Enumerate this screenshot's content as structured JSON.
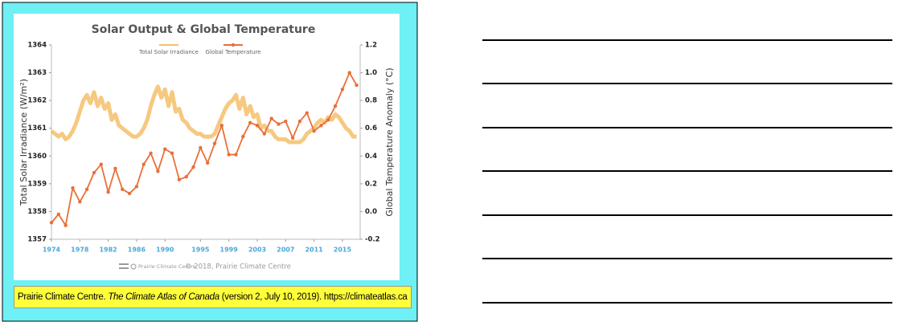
{
  "chart_data": {
    "type": "line",
    "title": "Solar Output & Global Temperature",
    "y_label": "Total Solar Irradiance (W/m²)",
    "y2_label": "Global Temperature Anomaly (°C)",
    "logo_text": "Prairie Climate Centre",
    "credit": "© 2018, Prairie Climate Centre",
    "xlim": [
      1974,
      2017.5
    ],
    "xticks": [
      1974,
      1978,
      1982,
      1986,
      1990,
      1995,
      1999,
      2003,
      2007,
      2011,
      2015
    ],
    "ylim": [
      1357,
      1364
    ],
    "yticks": [
      1357,
      1358,
      1359,
      1360,
      1361,
      1362,
      1363,
      1364
    ],
    "y2lim": [
      -0.2,
      1.2
    ],
    "y2ticks": [
      -0.2,
      {
        "value": 0,
        "label": "0.0"
      },
      0.2,
      0.4,
      0.6,
      0.8,
      {
        "value": 1,
        "label": "1.0"
      },
      1.2
    ],
    "series": [
      {
        "name": "Total Solar Irradiance",
        "color": "#f5c06a",
        "x": [
          1974,
          1974.5,
          1975,
          1975.5,
          1976,
          1976.5,
          1977,
          1977.5,
          1978,
          1978.5,
          1979,
          1979.5,
          1980,
          1980.5,
          1981,
          1981.5,
          1982,
          1982.5,
          1983,
          1983.5,
          1984,
          1984.5,
          1985,
          1985.5,
          1986,
          1986.5,
          1987,
          1987.5,
          1988,
          1988.5,
          1989,
          1989.5,
          1990,
          1990.5,
          1991,
          1991.5,
          1992,
          1992.5,
          1993,
          1993.5,
          1994,
          1994.5,
          1995,
          1995.5,
          1996,
          1996.5,
          1997,
          1997.5,
          1998,
          1998.5,
          1999,
          1999.5,
          2000,
          2000.5,
          2001,
          2001.5,
          2002,
          2002.5,
          2003,
          2003.5,
          2004,
          2004.5,
          2005,
          2005.5,
          2006,
          2006.5,
          2007,
          2007.5,
          2008,
          2008.5,
          2009,
          2009.5,
          2010,
          2010.5,
          2011,
          2011.5,
          2012,
          2012.5,
          2013,
          2013.5,
          2014,
          2014.5,
          2015,
          2015.5,
          2016,
          2016.5,
          2017
        ],
        "values": [
          1360.9,
          1360.8,
          1360.7,
          1360.8,
          1360.6,
          1360.7,
          1360.9,
          1361.2,
          1361.6,
          1362.0,
          1362.2,
          1361.9,
          1362.3,
          1361.8,
          1362.1,
          1361.7,
          1361.9,
          1361.3,
          1361.5,
          1361.1,
          1361.0,
          1360.9,
          1360.8,
          1360.7,
          1360.7,
          1360.8,
          1361.0,
          1361.3,
          1361.8,
          1362.2,
          1362.5,
          1362.1,
          1362.4,
          1361.8,
          1362.3,
          1361.6,
          1361.7,
          1361.3,
          1361.2,
          1361.0,
          1360.9,
          1360.8,
          1360.8,
          1360.7,
          1360.7,
          1360.7,
          1360.8,
          1361.1,
          1361.4,
          1361.7,
          1361.9,
          1362.0,
          1362.2,
          1361.7,
          1362.1,
          1361.5,
          1361.8,
          1361.4,
          1361.5,
          1361.0,
          1361.1,
          1360.9,
          1360.9,
          1360.7,
          1360.6,
          1360.6,
          1360.6,
          1360.5,
          1360.5,
          1360.5,
          1360.5,
          1360.6,
          1360.8,
          1360.9,
          1361.0,
          1361.2,
          1361.3,
          1361.2,
          1361.4,
          1361.3,
          1361.5,
          1361.4,
          1361.2,
          1361.0,
          1360.9,
          1360.7,
          1360.7
        ]
      },
      {
        "name": "Global Temperature",
        "color": "#e8703a",
        "axis": "y2",
        "markers": true,
        "x": [
          1974,
          1975,
          1976,
          1977,
          1978,
          1979,
          1980,
          1981,
          1982,
          1983,
          1984,
          1985,
          1986,
          1987,
          1988,
          1989,
          1990,
          1991,
          1992,
          1993,
          1994,
          1995,
          1996,
          1997,
          1998,
          1999,
          2000,
          2001,
          2002,
          2003,
          2004,
          2005,
          2006,
          2007,
          2008,
          2009,
          2010,
          2011,
          2012,
          2013,
          2014,
          2015,
          2016,
          2017
        ],
        "values": [
          -0.08,
          -0.02,
          -0.1,
          0.17,
          0.07,
          0.16,
          0.28,
          0.34,
          0.14,
          0.31,
          0.16,
          0.13,
          0.18,
          0.34,
          0.42,
          0.29,
          0.45,
          0.42,
          0.23,
          0.25,
          0.32,
          0.46,
          0.35,
          0.49,
          0.62,
          0.41,
          0.41,
          0.54,
          0.64,
          0.62,
          0.56,
          0.67,
          0.63,
          0.65,
          0.53,
          0.65,
          0.71,
          0.58,
          0.62,
          0.66,
          0.76,
          0.88,
          1.0,
          0.91
        ]
      }
    ]
  },
  "citation": {
    "author": "Prairie Climate Centre.",
    "title": "The Climate Atlas of Canada",
    "details": "(version 2, July 10, 2019). https://climateatlas.ca"
  }
}
